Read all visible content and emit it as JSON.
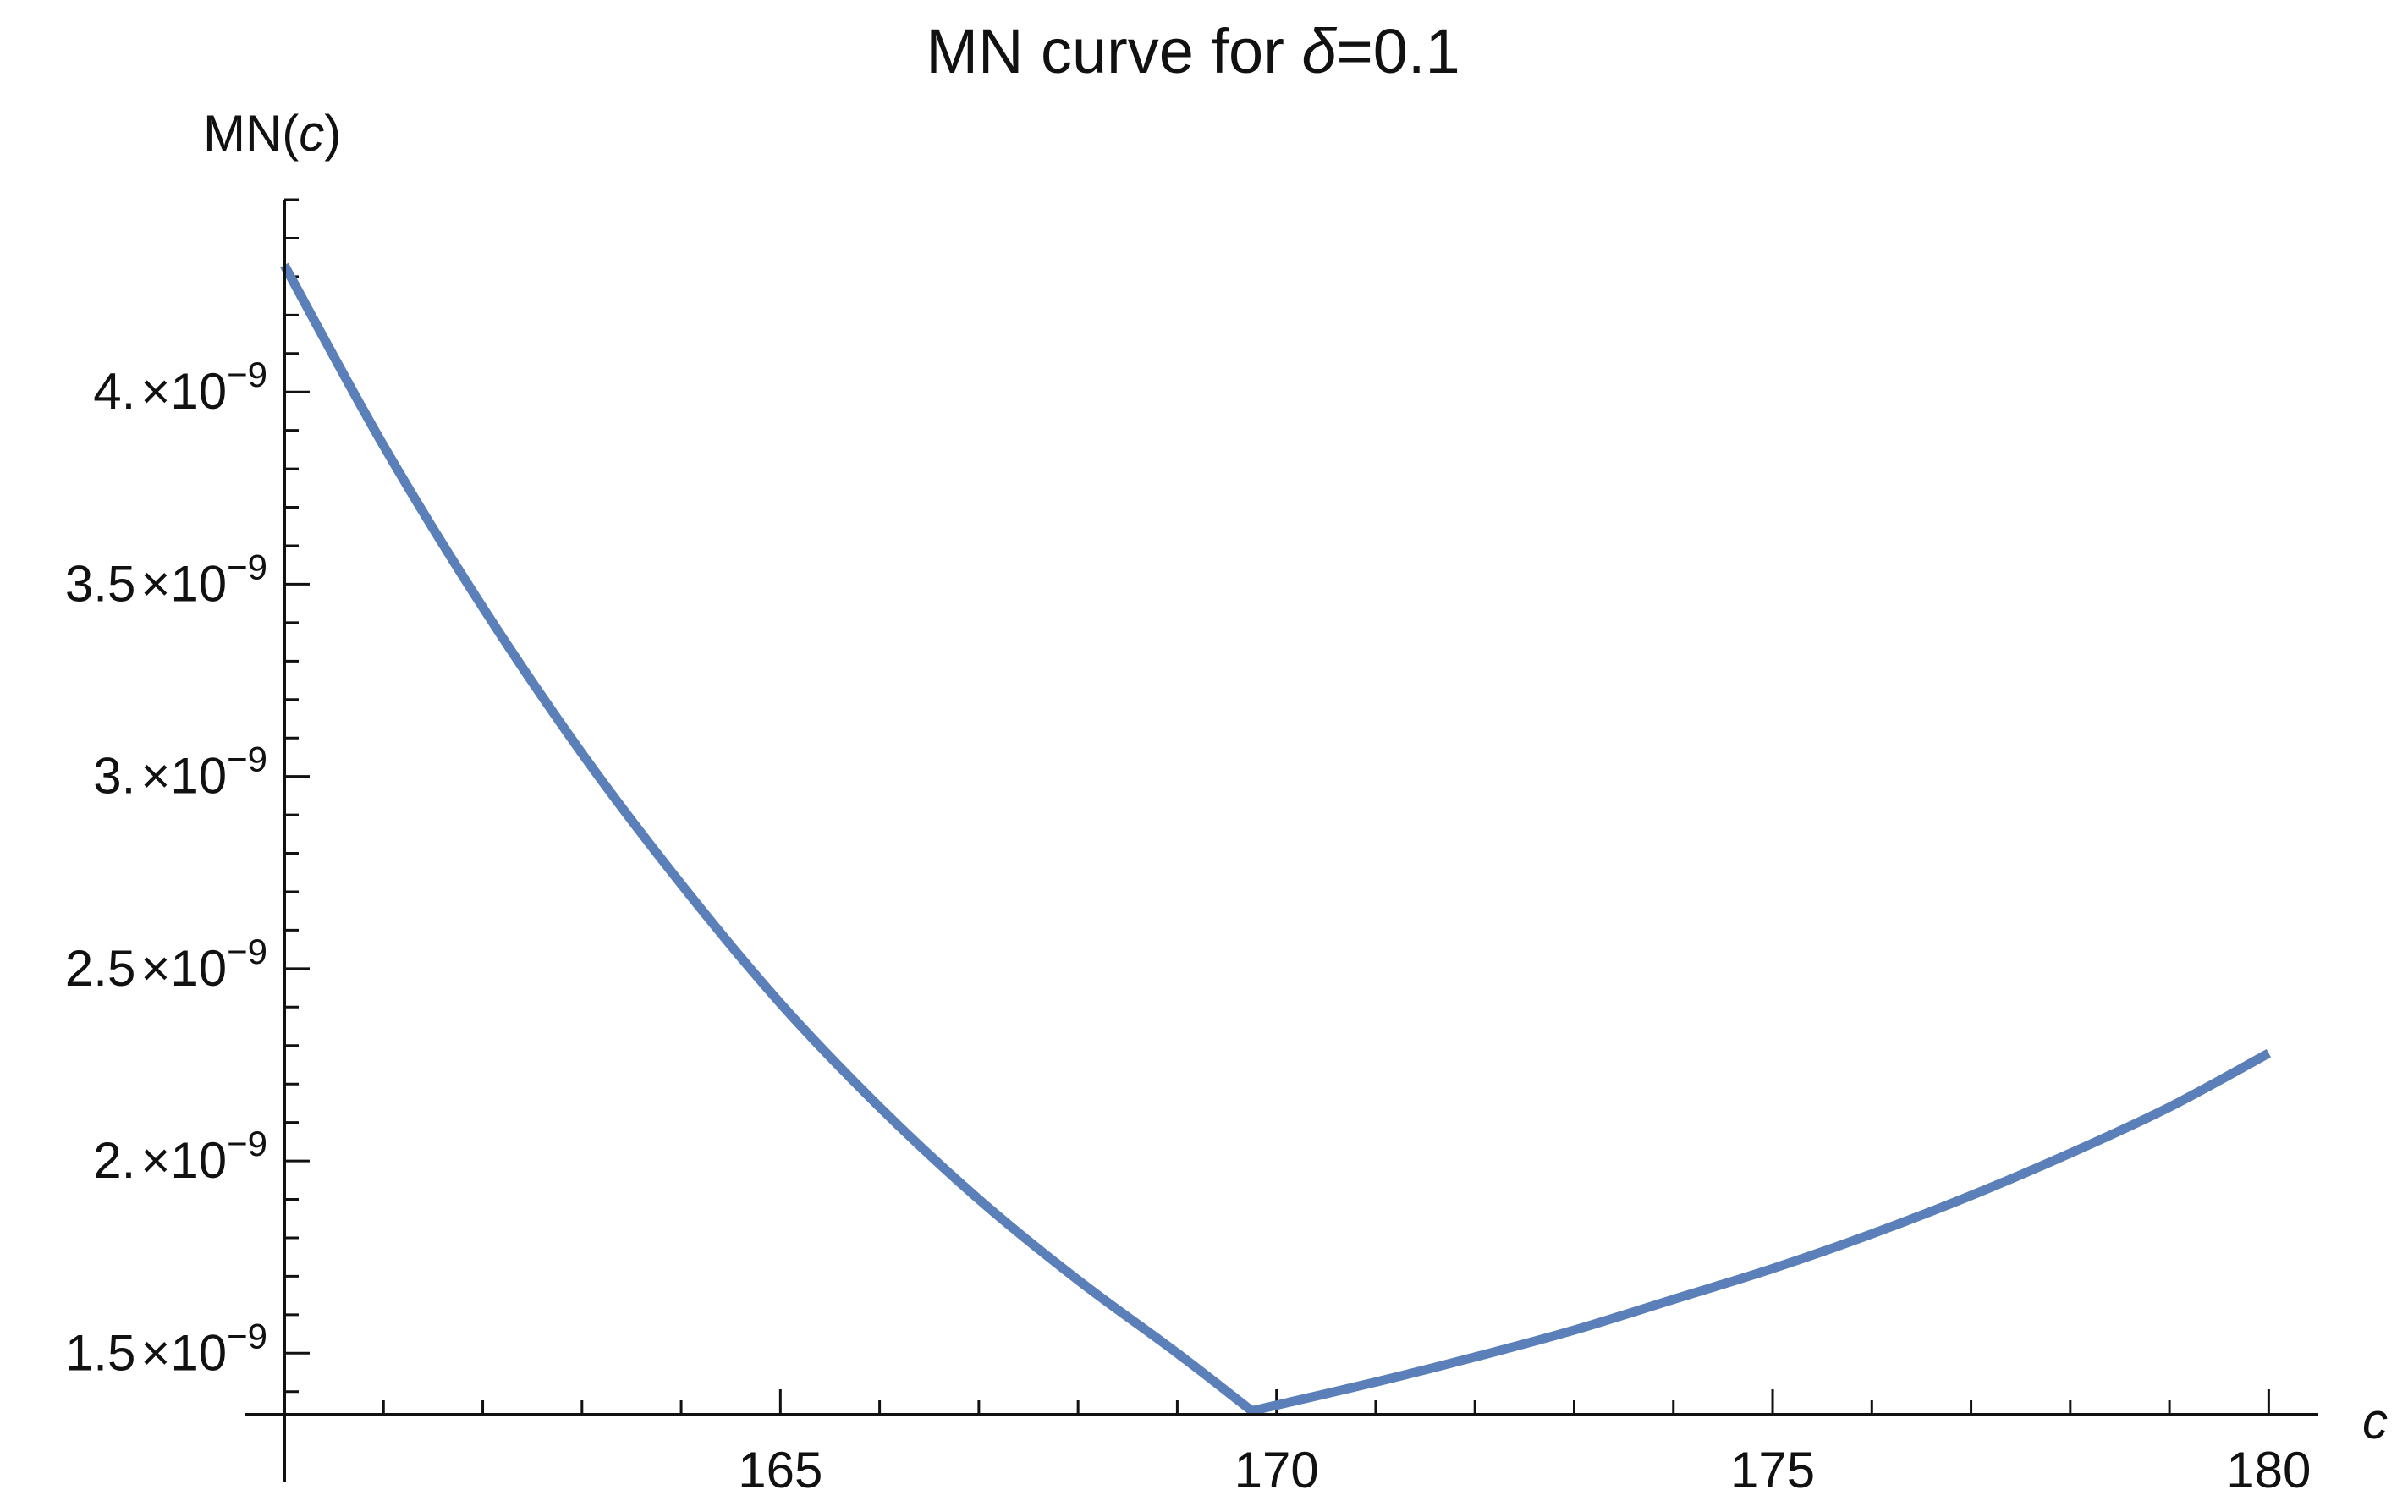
{
  "chart_data": {
    "type": "line",
    "title": {
      "prefix": "MN curve for ",
      "symbol": "δ",
      "suffix": "=0.1"
    },
    "xlabel": "c",
    "ylabel": {
      "prefix": "MN(",
      "var": "c",
      "suffix": ")"
    },
    "xlim": [
      160,
      180.5
    ],
    "ylim": [
      1.34e-09,
      4.5e-09
    ],
    "x_major_ticks": [
      165,
      170,
      175,
      180
    ],
    "x_tick_labels": [
      "165",
      "170",
      "175",
      "180"
    ],
    "x_minor_step": 1,
    "y_major_ticks": [
      {
        "value": 1.5e-09,
        "mantissa": "1.5",
        "base": "×10",
        "exp": "−9"
      },
      {
        "value": 2e-09,
        "mantissa": "2.",
        "base": "×10",
        "exp": "−9"
      },
      {
        "value": 2.5e-09,
        "mantissa": "2.5",
        "base": "×10",
        "exp": "−9"
      },
      {
        "value": 3e-09,
        "mantissa": "3.",
        "base": "×10",
        "exp": "−9"
      },
      {
        "value": 3.5e-09,
        "mantissa": "3.5",
        "base": "×10",
        "exp": "−9"
      },
      {
        "value": 4e-09,
        "mantissa": "4.",
        "base": "×10",
        "exp": "−9"
      }
    ],
    "y_minor_step": 1e-10,
    "series": [
      {
        "color": "#5b7fb8",
        "points": [
          [
            160.0,
            4.33e-09
          ],
          [
            161.0,
            3.86e-09
          ],
          [
            162.0,
            3.44e-09
          ],
          [
            163.0,
            3.06e-09
          ],
          [
            164.0,
            2.72e-09
          ],
          [
            165.0,
            2.41e-09
          ],
          [
            166.0,
            2.14e-09
          ],
          [
            167.0,
            1.9e-09
          ],
          [
            168.0,
            1.69e-09
          ],
          [
            169.0,
            1.5e-09
          ],
          [
            169.75,
            1.35e-09
          ],
          [
            171.0,
            1.425e-09
          ],
          [
            172.0,
            1.49e-09
          ],
          [
            173.0,
            1.56e-09
          ],
          [
            174.0,
            1.64e-09
          ],
          [
            175.0,
            1.72e-09
          ],
          [
            176.0,
            1.81e-09
          ],
          [
            177.0,
            1.91e-09
          ],
          [
            178.0,
            2.02e-09
          ],
          [
            179.0,
            2.14e-09
          ],
          [
            180.0,
            2.28e-09
          ]
        ]
      }
    ]
  }
}
